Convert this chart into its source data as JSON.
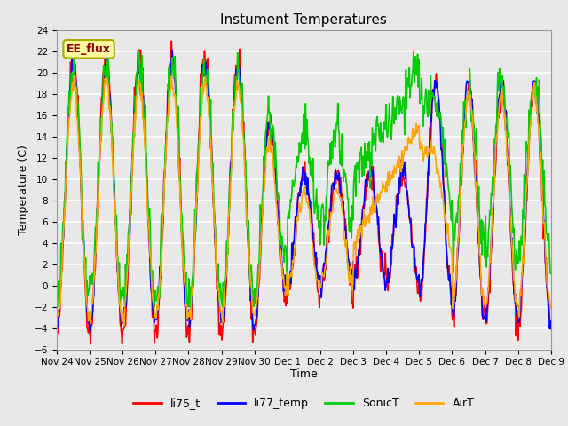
{
  "title": "Instument Temperatures",
  "xlabel": "Time",
  "ylabel": "Temperature (C)",
  "ylim": [
    -6,
    24
  ],
  "yticks": [
    -6,
    -4,
    -2,
    0,
    2,
    4,
    6,
    8,
    10,
    12,
    14,
    16,
    18,
    20,
    22,
    24
  ],
  "annotation_text": "EE_flux",
  "annotation_color": "#8B0000",
  "annotation_bg": "#FFFFA0",
  "annotation_edge": "#AAAA00",
  "bg_color": "#E8E8E8",
  "plot_bg": "#E8E8E8",
  "grid_color": "#FFFFFF",
  "series": [
    {
      "label": "li75_t",
      "color": "#FF0000"
    },
    {
      "label": "li77_temp",
      "color": "#0000FF"
    },
    {
      "label": "SonicT",
      "color": "#00CC00"
    },
    {
      "label": "AirT",
      "color": "#FFA500"
    }
  ],
  "xtick_labels": [
    "Nov 24",
    "Nov 25",
    "Nov 26",
    "Nov 27",
    "Nov 28",
    "Nov 29",
    "Nov 30",
    "Dec 1",
    "Dec 2",
    "Dec 3",
    "Dec 4",
    "Dec 5",
    "Dec 6",
    "Dec 7",
    "Dec 8",
    "Dec 9"
  ],
  "linewidth": 1.2,
  "figsize": [
    6.4,
    4.8
  ],
  "dpi": 100
}
